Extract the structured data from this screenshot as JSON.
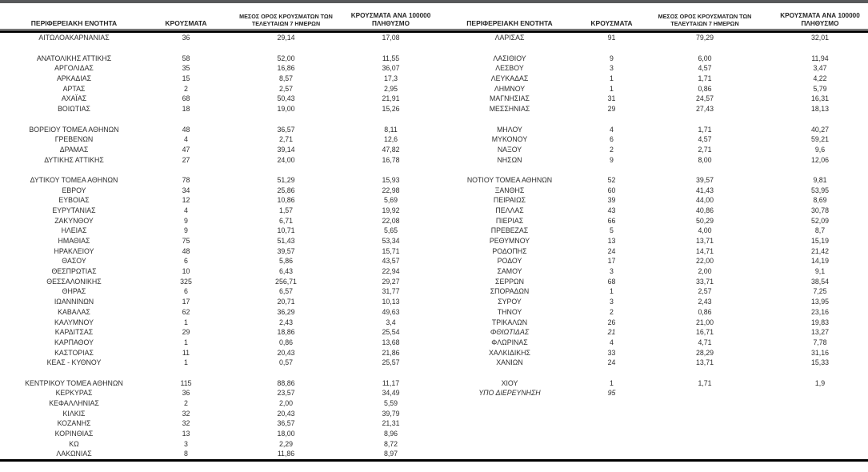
{
  "page": {
    "top_bar_color": "#58595b"
  },
  "table": {
    "headers": {
      "region": "ΠΕΡΙΦΕΡΕΙΑΚΗ ΕΝΟΤΗΤΑ",
      "cases": "ΚΡΟΥΣΜΑΤΑ",
      "avg7_line1": "ΜΕΣΟΣ ΟΡΟΣ ΚΡΟΥΣΜΑΤΩΝ ΤΩΝ",
      "avg7_line2": "ΤΕΛΕΥΤΑΙΩΝ 7 ΗΜΕΡΩΝ",
      "per100k_line1": "ΚΡΟΥΣΜΑΤΑ ΑΝΑ 100000",
      "per100k_line2": "ΠΛΗΘΥΣΜΟ"
    },
    "row_count": 42,
    "left_rows": [
      {
        "region": "ΑΙΤΩΛΟΑΚΑΡΝΑΝΙΑΣ",
        "cases": "36",
        "avg7": "29,14",
        "per100k": "17,08"
      },
      null,
      {
        "region": "ΑΝΑΤΟΛΙΚΗΣ ΑΤΤΙΚΗΣ",
        "cases": "58",
        "avg7": "52,00",
        "per100k": "11,55"
      },
      {
        "region": "ΑΡΓΟΛΙΔΑΣ",
        "cases": "35",
        "avg7": "16,86",
        "per100k": "36,07"
      },
      {
        "region": "ΑΡΚΑΔΙΑΣ",
        "cases": "15",
        "avg7": "8,57",
        "per100k": "17,3"
      },
      {
        "region": "ΑΡΤΑΣ",
        "cases": "2",
        "avg7": "2,57",
        "per100k": "2,95"
      },
      {
        "region": "ΑΧΑΪΑΣ",
        "cases": "68",
        "avg7": "50,43",
        "per100k": "21,91"
      },
      {
        "region": "ΒΟΙΩΤΙΑΣ",
        "cases": "18",
        "avg7": "19,00",
        "per100k": "15,26"
      },
      null,
      {
        "region": "ΒΟΡΕΙΟΥ ΤΟΜΕΑ ΑΘΗΝΩΝ",
        "cases": "48",
        "avg7": "36,57",
        "per100k": "8,11"
      },
      {
        "region": "ΓΡΕΒΕΝΩΝ",
        "cases": "4",
        "avg7": "2,71",
        "per100k": "12,6"
      },
      {
        "region": "ΔΡΑΜΑΣ",
        "cases": "47",
        "avg7": "39,14",
        "per100k": "47,82"
      },
      {
        "region": "ΔΥΤΙΚΗΣ ΑΤΤΙΚΗΣ",
        "cases": "27",
        "avg7": "24,00",
        "per100k": "16,78"
      },
      null,
      {
        "region": "ΔΥΤΙΚΟΥ ΤΟΜΕΑ ΑΘΗΝΩΝ",
        "cases": "78",
        "avg7": "51,29",
        "per100k": "15,93"
      },
      {
        "region": "ΕΒΡΟΥ",
        "cases": "34",
        "avg7": "25,86",
        "per100k": "22,98"
      },
      {
        "region": "ΕΥΒΟΙΑΣ",
        "cases": "12",
        "avg7": "10,86",
        "per100k": "5,69"
      },
      {
        "region": "ΕΥΡΥΤΑΝΙΑΣ",
        "cases": "4",
        "avg7": "1,57",
        "per100k": "19,92"
      },
      {
        "region": "ΖΑΚΥΝΘΟΥ",
        "cases": "9",
        "avg7": "6,71",
        "per100k": "22,08"
      },
      {
        "region": "ΗΛΕΙΑΣ",
        "cases": "9",
        "avg7": "10,71",
        "per100k": "5,65"
      },
      {
        "region": "ΗΜΑΘΙΑΣ",
        "cases": "75",
        "avg7": "51,43",
        "per100k": "53,34"
      },
      {
        "region": "ΗΡΑΚΛΕΙΟΥ",
        "cases": "48",
        "avg7": "39,57",
        "per100k": "15,71"
      },
      {
        "region": "ΘΑΣΟΥ",
        "cases": "6",
        "avg7": "5,86",
        "per100k": "43,57"
      },
      {
        "region": "ΘΕΣΠΡΩΤΙΑΣ",
        "cases": "10",
        "avg7": "6,43",
        "per100k": "22,94"
      },
      {
        "region": "ΘΕΣΣΑΛΟΝΙΚΗΣ",
        "cases": "325",
        "avg7": "256,71",
        "per100k": "29,27"
      },
      {
        "region": "ΘΗΡΑΣ",
        "cases": "6",
        "avg7": "6,57",
        "per100k": "31,77"
      },
      {
        "region": "ΙΩΑΝΝΙΝΩΝ",
        "cases": "17",
        "avg7": "20,71",
        "per100k": "10,13"
      },
      {
        "region": "ΚΑΒΑΛΑΣ",
        "cases": "62",
        "avg7": "36,29",
        "per100k": "49,63"
      },
      {
        "region": "ΚΑΛΥΜΝΟΥ",
        "cases": "1",
        "avg7": "2,43",
        "per100k": "3,4"
      },
      {
        "region": "ΚΑΡΔΙΤΣΑΣ",
        "cases": "29",
        "avg7": "18,86",
        "per100k": "25,54"
      },
      {
        "region": "ΚΑΡΠΑΘΟΥ",
        "cases": "1",
        "avg7": "0,86",
        "per100k": "13,68"
      },
      {
        "region": "ΚΑΣΤΟΡΙΑΣ",
        "cases": "11",
        "avg7": "20,43",
        "per100k": "21,86"
      },
      {
        "region": "ΚΕΑΣ - ΚΥΘΝΟΥ",
        "cases": "1",
        "avg7": "0,57",
        "per100k": "25,57"
      },
      null,
      {
        "region": "ΚΕΝΤΡΙΚΟΥ ΤΟΜΕΑ ΑΘΗΝΩΝ",
        "cases": "115",
        "avg7": "88,86",
        "per100k": "11,17"
      },
      {
        "region": "ΚΕΡΚΥΡΑΣ",
        "cases": "36",
        "avg7": "23,57",
        "per100k": "34,49"
      },
      {
        "region": "ΚΕΦΑΛΛΗΝΙΑΣ",
        "cases": "2",
        "avg7": "2,00",
        "per100k": "5,59"
      },
      {
        "region": "ΚΙΛΚΙΣ",
        "cases": "32",
        "avg7": "20,43",
        "per100k": "39,79"
      },
      {
        "region": "ΚΟΖΑΝΗΣ",
        "cases": "32",
        "avg7": "36,57",
        "per100k": "21,31"
      },
      {
        "region": "ΚΟΡΙΝΘΙΑΣ",
        "cases": "13",
        "avg7": "18,00",
        "per100k": "8,96"
      },
      {
        "region": "ΚΩ",
        "cases": "3",
        "avg7": "2,29",
        "per100k": "8,72"
      },
      {
        "region": "ΛΑΚΩΝΙΑΣ",
        "cases": "8",
        "avg7": "11,86",
        "per100k": "8,97"
      }
    ],
    "right_rows": [
      {
        "region": "ΛΑΡΙΣΑΣ",
        "cases": "91",
        "avg7": "79,29",
        "per100k": "32,01"
      },
      null,
      {
        "region": "ΛΑΣΙΘΙΟΥ",
        "cases": "9",
        "avg7": "6,00",
        "per100k": "11,94"
      },
      {
        "region": "ΛΕΣΒΟΥ",
        "cases": "3",
        "avg7": "4,57",
        "per100k": "3,47"
      },
      {
        "region": "ΛΕΥΚΑΔΑΣ",
        "cases": "1",
        "avg7": "1,71",
        "per100k": "4,22"
      },
      {
        "region": "ΛΗΜΝΟΥ",
        "cases": "1",
        "avg7": "0,86",
        "per100k": "5,79"
      },
      {
        "region": "ΜΑΓΝΗΣΙΑΣ",
        "cases": "31",
        "avg7": "24,57",
        "per100k": "16,31"
      },
      {
        "region": "ΜΕΣΣΗΝΙΑΣ",
        "cases": "29",
        "avg7": "27,43",
        "per100k": "18,13"
      },
      null,
      {
        "region": "ΜΗΛΟΥ",
        "cases": "4",
        "avg7": "1,71",
        "per100k": "40,27"
      },
      {
        "region": "ΜΥΚΟΝΟΥ",
        "cases": "6",
        "avg7": "4,57",
        "per100k": "59,21"
      },
      {
        "region": "ΝΑΞΟΥ",
        "cases": "2",
        "avg7": "2,71",
        "per100k": "9,6"
      },
      {
        "region": "ΝΗΣΩΝ",
        "cases": "9",
        "avg7": "8,00",
        "per100k": "12,06"
      },
      null,
      {
        "region": "ΝΟΤΙΟΥ ΤΟΜΕΑ ΑΘΗΝΩΝ",
        "cases": "52",
        "avg7": "39,57",
        "per100k": "9,81"
      },
      {
        "region": "ΞΑΝΘΗΣ",
        "cases": "60",
        "avg7": "41,43",
        "per100k": "53,95"
      },
      {
        "region": "ΠΕΙΡΑΙΩΣ",
        "cases": "39",
        "avg7": "44,00",
        "per100k": "8,69"
      },
      {
        "region": "ΠΕΛΛΑΣ",
        "cases": "43",
        "avg7": "40,86",
        "per100k": "30,78"
      },
      {
        "region": "ΠΙΕΡΙΑΣ",
        "cases": "66",
        "avg7": "50,29",
        "per100k": "52,09"
      },
      {
        "region": "ΠΡΕΒΕΖΑΣ",
        "cases": "5",
        "avg7": "4,00",
        "per100k": "8,7"
      },
      {
        "region": "ΡΕΘΥΜΝΟΥ",
        "cases": "13",
        "avg7": "13,71",
        "per100k": "15,19"
      },
      {
        "region": "ΡΟΔΟΠΗΣ",
        "cases": "24",
        "avg7": "14,71",
        "per100k": "21,42"
      },
      {
        "region": "ΡΟΔΟΥ",
        "cases": "17",
        "avg7": "22,00",
        "per100k": "14,19"
      },
      {
        "region": "ΣΑΜΟΥ",
        "cases": "3",
        "avg7": "2,00",
        "per100k": "9,1"
      },
      {
        "region": "ΣΕΡΡΩΝ",
        "cases": "68",
        "avg7": "33,71",
        "per100k": "38,54"
      },
      {
        "region": "ΣΠΟΡΑΔΩΝ",
        "cases": "1",
        "avg7": "2,57",
        "per100k": "7,25"
      },
      {
        "region": "ΣΥΡΟΥ",
        "cases": "3",
        "avg7": "2,43",
        "per100k": "13,95"
      },
      {
        "region": "ΤΗΝΟΥ",
        "cases": "2",
        "avg7": "0,86",
        "per100k": "23,16"
      },
      {
        "region": "ΤΡΙΚΑΛΩΝ",
        "cases": "26",
        "avg7": "21,00",
        "per100k": "19,83"
      },
      {
        "region": "ΦΘΙΩΤΙΔΑΣ",
        "cases": "21",
        "avg7": "16,71",
        "per100k": "13,27",
        "italic": true
      },
      {
        "region": "ΦΛΩΡΙΝΑΣ",
        "cases": "4",
        "avg7": "4,71",
        "per100k": "7,78"
      },
      {
        "region": "ΧΑΛΚΙΔΙΚΗΣ",
        "cases": "33",
        "avg7": "28,29",
        "per100k": "31,16"
      },
      {
        "region": "ΧΑΝΙΩΝ",
        "cases": "24",
        "avg7": "13,71",
        "per100k": "15,33"
      },
      null,
      {
        "region": "ΧΙΟΥ",
        "cases": "1",
        "avg7": "1,71",
        "per100k": "1,9"
      },
      {
        "region": "ΥΠΟ ΔΙΕΡΕΥΝΗΣΗ",
        "cases": "95",
        "avg7": "",
        "per100k": "",
        "italic": true
      },
      null,
      null,
      null,
      null,
      null,
      null
    ]
  }
}
